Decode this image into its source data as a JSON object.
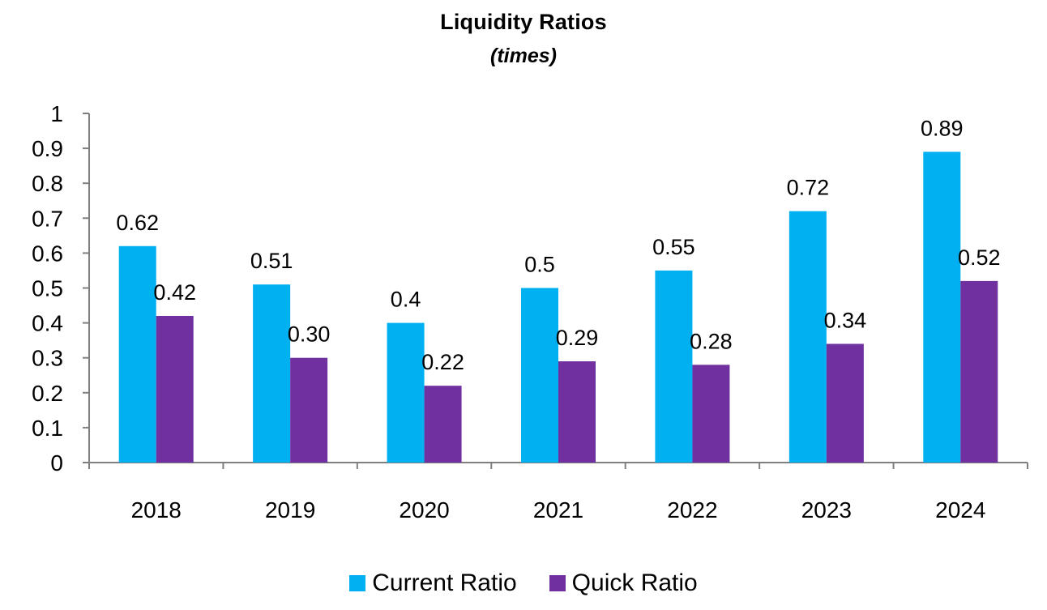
{
  "chart_data": {
    "type": "bar",
    "title": "Liquidity Ratios",
    "subtitle": "(times)",
    "categories": [
      "2018",
      "2019",
      "2020",
      "2021",
      "2022",
      "2023",
      "2024"
    ],
    "series": [
      {
        "name": "Current Ratio",
        "color": "#00B0F0",
        "values": [
          0.62,
          0.51,
          0.4,
          0.5,
          0.55,
          0.72,
          0.89
        ],
        "labels": [
          "0.62",
          "0.51",
          "0.4",
          "0.5",
          "0.55",
          "0.72",
          "0.89"
        ]
      },
      {
        "name": "Quick Ratio",
        "color": "#7030A0",
        "values": [
          0.42,
          0.3,
          0.22,
          0.29,
          0.28,
          0.34,
          0.52
        ],
        "labels": [
          "0.42",
          "0.30",
          "0.22",
          "0.29",
          "0.28",
          "0.34",
          "0.52"
        ]
      }
    ],
    "ylim": [
      0,
      1
    ],
    "yticks": [
      "0",
      "0.1",
      "0.2",
      "0.3",
      "0.4",
      "0.5",
      "0.6",
      "0.7",
      "0.8",
      "0.9",
      "1"
    ],
    "xlabel": "",
    "ylabel": "",
    "grid": false,
    "legend_position": "bottom"
  }
}
